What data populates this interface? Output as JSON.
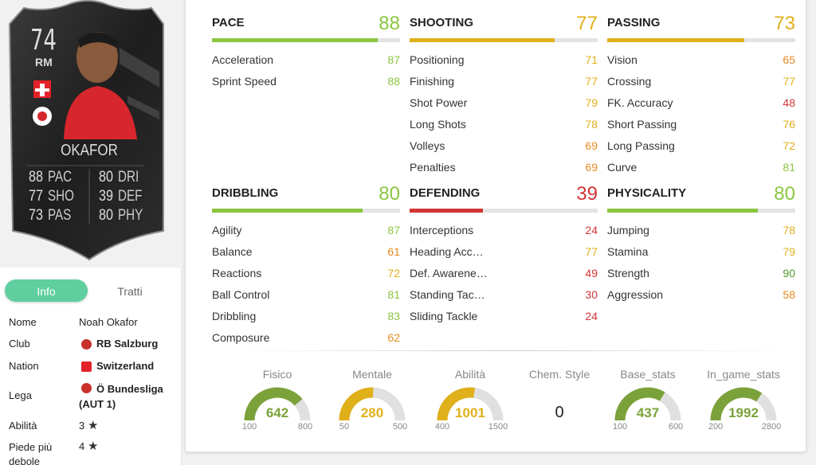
{
  "card": {
    "rating": "74",
    "position": "RM",
    "name": "OKAFOR",
    "stats": [
      {
        "value": 88,
        "label": "PAC"
      },
      {
        "value": 77,
        "label": "SHO"
      },
      {
        "value": 73,
        "label": "PAS"
      },
      {
        "value": 80,
        "label": "DRI"
      },
      {
        "value": 39,
        "label": "DEF"
      },
      {
        "value": 80,
        "label": "PHY"
      }
    ]
  },
  "tabs": [
    "Info",
    "Tratti"
  ],
  "info": [
    {
      "label": "Nome",
      "value": "Noah Okafor"
    },
    {
      "label": "Club",
      "value": "RB Salzburg"
    },
    {
      "label": "Nation",
      "value": "Switzerland"
    },
    {
      "label": "Lega",
      "value": "Ö Bundesliga (AUT 1)"
    },
    {
      "label": "Abilità",
      "value": "3"
    },
    {
      "label": "Piede più debole",
      "value": "4"
    }
  ],
  "groups": [
    {
      "name": "PACE",
      "value": 88,
      "attributes": [
        {
          "name": "Acceleration",
          "value": 87
        },
        {
          "name": "Sprint Speed",
          "value": 88
        }
      ]
    },
    {
      "name": "SHOOTING",
      "value": 77,
      "attributes": [
        {
          "name": "Positioning",
          "value": 71
        },
        {
          "name": "Finishing",
          "value": 77
        },
        {
          "name": "Shot Power",
          "value": 79
        },
        {
          "name": "Long Shots",
          "value": 78
        },
        {
          "name": "Volleys",
          "value": 69
        },
        {
          "name": "Penalties",
          "value": 69
        }
      ]
    },
    {
      "name": "PASSING",
      "value": 73,
      "attributes": [
        {
          "name": "Vision",
          "value": 65
        },
        {
          "name": "Crossing",
          "value": 77
        },
        {
          "name": "FK. Accuracy",
          "value": 48
        },
        {
          "name": "Short Passing",
          "value": 76
        },
        {
          "name": "Long Passing",
          "value": 72
        },
        {
          "name": "Curve",
          "value": 81
        }
      ]
    },
    {
      "name": "DRIBBLING",
      "value": 80,
      "attributes": [
        {
          "name": "Agility",
          "value": 87
        },
        {
          "name": "Balance",
          "value": 61
        },
        {
          "name": "Reactions",
          "value": 72
        },
        {
          "name": "Ball Control",
          "value": 81
        },
        {
          "name": "Dribbling",
          "value": 83
        },
        {
          "name": "Composure",
          "value": 62
        }
      ]
    },
    {
      "name": "DEFENDING",
      "value": 39,
      "attributes": [
        {
          "name": "Interceptions",
          "value": 24
        },
        {
          "name": "Heading Acc…",
          "value": 77
        },
        {
          "name": "Def. Awarene…",
          "value": 49
        },
        {
          "name": "Standing Tac…",
          "value": 30
        },
        {
          "name": "Sliding Tackle",
          "value": 24
        }
      ]
    },
    {
      "name": "PHYSICALITY",
      "value": 80,
      "attributes": [
        {
          "name": "Jumping",
          "value": 78
        },
        {
          "name": "Stamina",
          "value": 79
        },
        {
          "name": "Strength",
          "value": 90
        },
        {
          "name": "Aggression",
          "value": 58
        }
      ]
    }
  ],
  "gauges": [
    {
      "label": "Fisico",
      "value": 642,
      "min": 100,
      "max": 800
    },
    {
      "label": "Mentale",
      "value": 280,
      "min": 50,
      "max": 500
    },
    {
      "label": "Abilità",
      "value": 1001,
      "min": 400,
      "max": 1500
    },
    {
      "label": "Chem. Style",
      "value": 0
    },
    {
      "label": "Base_stats",
      "value": 437,
      "min": 100,
      "max": 600
    },
    {
      "label": "In_game_stats",
      "value": 1992,
      "min": 200,
      "max": 2800
    }
  ]
}
